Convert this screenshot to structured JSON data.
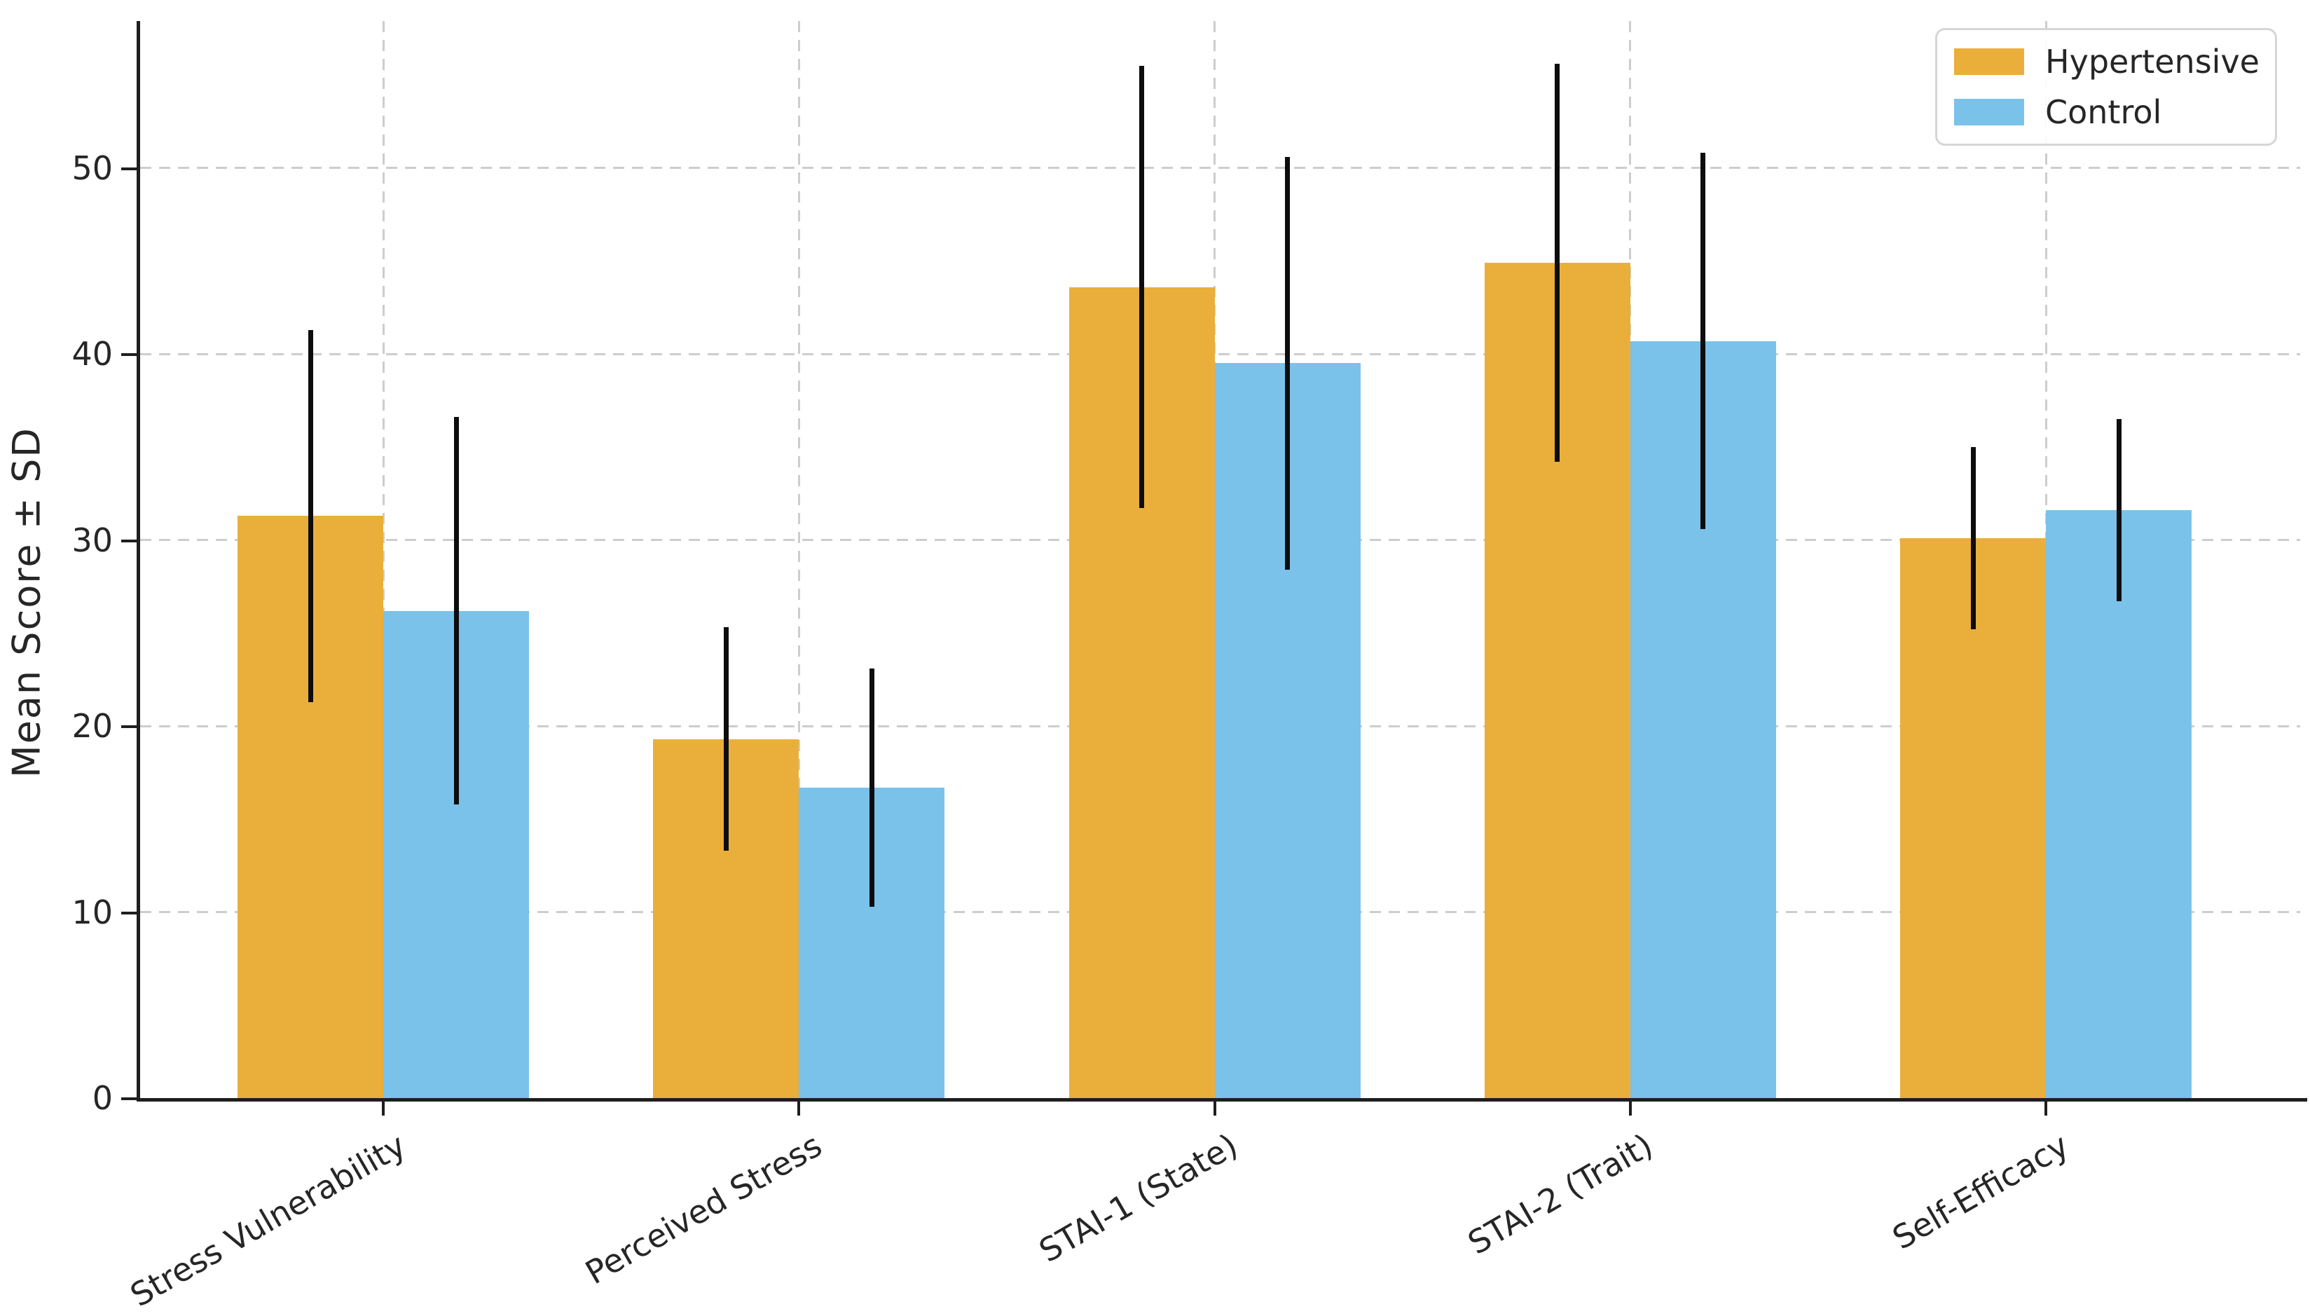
{
  "chart_data": {
    "type": "bar",
    "title": "",
    "xlabel": "",
    "ylabel": "Mean Score ± SD",
    "categories": [
      "Stress Vulnerability",
      "Perceived Stress",
      "STAI-1 (State)",
      "STAI-2 (Trait)",
      "Self-Efficacy"
    ],
    "series": [
      {
        "name": "Hypertensive",
        "color": "#EAAF3B",
        "values": [
          31.3,
          19.3,
          43.6,
          44.9,
          30.1
        ],
        "sd": [
          10.0,
          6.0,
          11.9,
          10.7,
          4.9
        ]
      },
      {
        "name": "Control",
        "color": "#7AC2EA",
        "values": [
          26.2,
          16.7,
          39.5,
          40.7,
          31.6
        ],
        "sd": [
          10.4,
          6.4,
          11.1,
          10.1,
          4.9
        ]
      }
    ],
    "error_bars": "plus-minus SD, black vertical lines, no caps",
    "y_ticks": [
      0,
      10,
      20,
      30,
      40,
      50
    ],
    "ylim": [
      0,
      57.9
    ],
    "grid": "dashed gridlines on both axes",
    "legend_position": "upper right",
    "x_tick_rotation_deg": 30
  },
  "colors": {
    "grid": "#cdcdcd",
    "spine": "#1f1f1f",
    "error_bar": "#0d0d0d",
    "text": "#262626",
    "background": "#ffffff",
    "legend_border": "#d6d6d6"
  }
}
